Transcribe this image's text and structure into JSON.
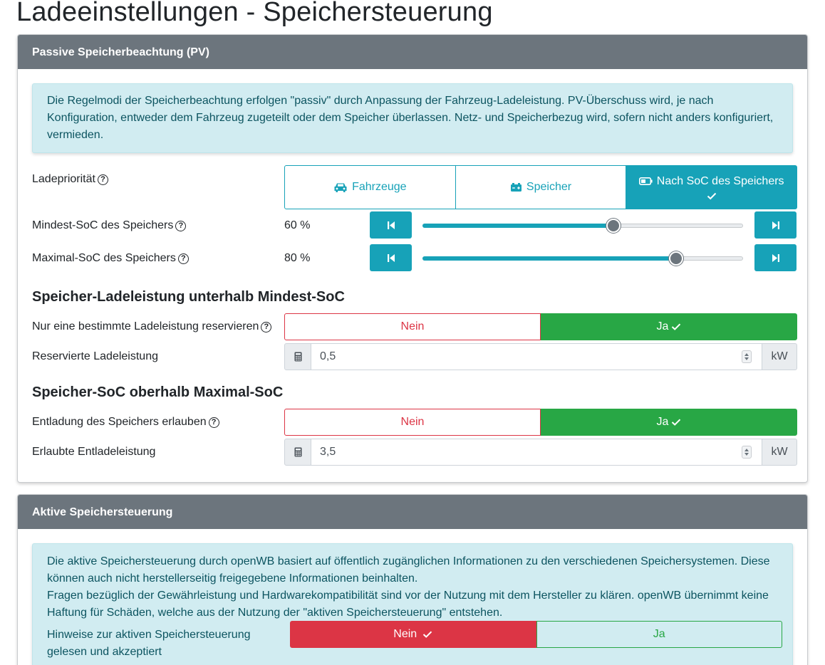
{
  "page": {
    "title": "Ladeeinstellungen - Speichersteuerung"
  },
  "passive": {
    "header": "Passive Speicherbeachtung (PV)",
    "info": "Die Regelmodi der Speicherbeachtung erfolgen \"passiv\" durch Anpassung der Fahrzeug-Ladeleistung. PV-Überschuss wird, je nach Konfiguration, entweder dem Fahrzeug zugeteilt oder dem Speicher überlassen. Netz- und Speicherbezug wird, sofern nicht anders konfiguriert, vermieden.",
    "priority": {
      "label": "Ladepriorität",
      "options": [
        "Fahrzeuge",
        "Speicher",
        "Nach SoC des Speichers"
      ],
      "selected": "Nach SoC des Speichers"
    },
    "min_soc": {
      "label": "Mindest-SoC des Speichers",
      "value": "60 %",
      "percent": 60
    },
    "max_soc": {
      "label": "Maximal-SoC des Speichers",
      "value": "80 %",
      "percent": 80
    },
    "section_below_min": "Speicher-Ladeleistung unterhalb Mindest-SoC",
    "reserve": {
      "label": "Nur eine bestimmte Ladeleistung reservieren",
      "no": "Nein",
      "yes": "Ja",
      "selected": "Ja"
    },
    "reserved_power": {
      "label": "Reservierte Ladeleistung",
      "value": "0,5",
      "unit": "kW"
    },
    "section_above_max": "Speicher-SoC oberhalb Maximal-SoC",
    "discharge": {
      "label": "Entladung des Speichers erlauben",
      "no": "Nein",
      "yes": "Ja",
      "selected": "Ja"
    },
    "discharge_power": {
      "label": "Erlaubte Entladeleistung",
      "value": "3,5",
      "unit": "kW"
    }
  },
  "active": {
    "header": "Aktive Speichersteuerung",
    "info_line1": "Die aktive Speichersteuerung durch openWB basiert auf öffentlich zugänglichen Informationen zu den verschiedenen Speichersystemen. Diese können auch nicht herstellerseitig freigegebene Informationen beinhalten.",
    "info_line2": "Fragen bezüglich der Gewährleistung und Hardwarekompatibilität sind vor der Nutzung mit dem Hersteller zu klären. openWB übernimmt keine Haftung für Schäden, welche aus der Nutzung der \"aktiven Speichersteuerung\" entstehen.",
    "ack": {
      "label": "Hinweise zur aktiven Speichersteuerung gelesen und akzeptiert",
      "no": "Nein",
      "yes": "Ja",
      "selected": "Nein"
    }
  },
  "colors": {
    "info": "#17a2b8",
    "success": "#28a745",
    "danger": "#dc3545",
    "header": "#6c757d"
  }
}
